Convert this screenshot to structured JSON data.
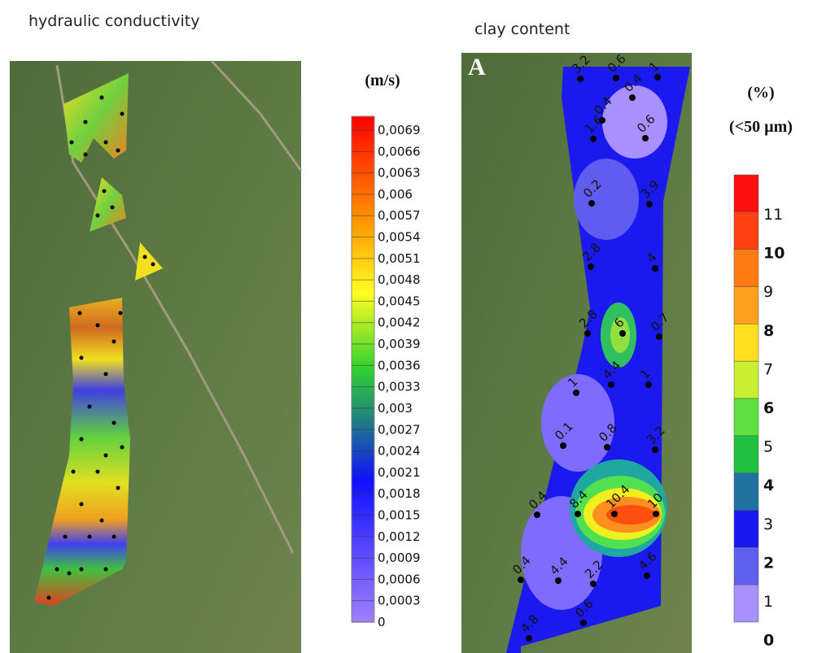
{
  "left_panel": {
    "title": "hydraulic conductivity",
    "unit": "(m/s)",
    "scale_labels": [
      "0,0069",
      "0,0066",
      "0,0063",
      "0,006",
      "0,0057",
      "0,0054",
      "0,0051",
      "0,0048",
      "0,0045",
      "0,0042",
      "0,0039",
      "0,0036",
      "0,0033",
      "0,003",
      "0,0027",
      "0,0024",
      "0,0021",
      "0,0018",
      "0,0015",
      "0,0012",
      "0,0009",
      "0,0006",
      "0,0003",
      "0"
    ]
  },
  "right_panel": {
    "title": "clay content",
    "panel_letter": "A",
    "unit_lines": [
      "(%)",
      "(<50 µm)"
    ],
    "scale_labels": [
      "11",
      "10",
      "9",
      "8",
      "7",
      "6",
      "5",
      "4",
      "3",
      "2",
      "1",
      "0"
    ],
    "point_labels": [
      "3.2",
      "0.6",
      "1",
      "0.4",
      "0.4",
      "1.6",
      "0.6",
      "0.2",
      "3.9",
      "2.8",
      "4",
      "2.8",
      "6",
      "0.7",
      "4.4",
      "1",
      "1",
      "0.1",
      "0.8",
      "3.2",
      "0.4",
      "8.4",
      "10.4",
      "10",
      "0.4",
      "4.4",
      "2.2",
      "4.6",
      "0.6",
      "4.8"
    ]
  }
}
